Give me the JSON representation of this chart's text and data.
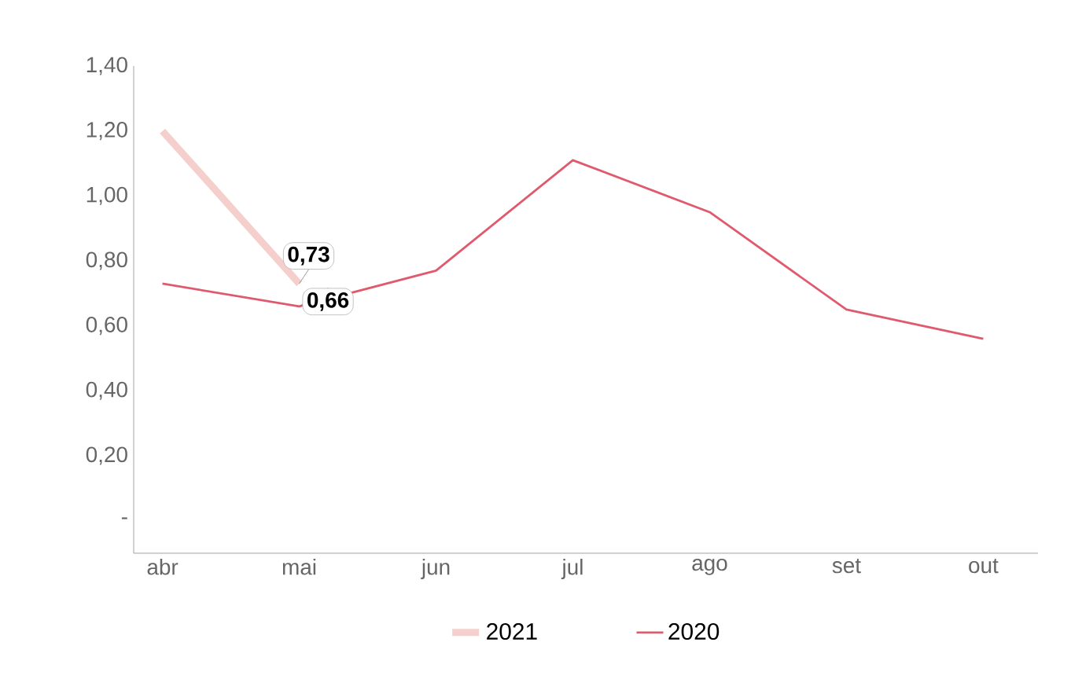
{
  "chart_data": {
    "type": "line",
    "categories": [
      "abr",
      "mai",
      "jun",
      "jul",
      "ago",
      "set",
      "out"
    ],
    "series": [
      {
        "name": "2021",
        "color": "#f5cfcc",
        "values": [
          1.2,
          0.73,
          null,
          null,
          null,
          null,
          null
        ],
        "value_labels": [
          null,
          "0,73",
          null,
          null,
          null,
          null,
          null
        ]
      },
      {
        "name": "2020",
        "color": "#e05a6e",
        "values": [
          0.73,
          0.66,
          0.77,
          1.11,
          0.95,
          0.65,
          0.56
        ],
        "value_labels": [
          null,
          "0,66",
          null,
          null,
          null,
          null,
          null
        ]
      }
    ],
    "ylim": [
      -0.1,
      1.4
    ],
    "yticks": [
      {
        "value": 0,
        "label": "-"
      },
      {
        "value": 0.2,
        "label": "0,20"
      },
      {
        "value": 0.4,
        "label": "0,40"
      },
      {
        "value": 0.6,
        "label": "0,60"
      },
      {
        "value": 0.8,
        "label": "0,80"
      },
      {
        "value": 1.0,
        "label": "1,00"
      },
      {
        "value": 1.2,
        "label": "1,20"
      },
      {
        "value": 1.4,
        "label": "1,40"
      }
    ],
    "grid": false,
    "legend": "bottom",
    "marker": "none",
    "line_style": "solid"
  }
}
